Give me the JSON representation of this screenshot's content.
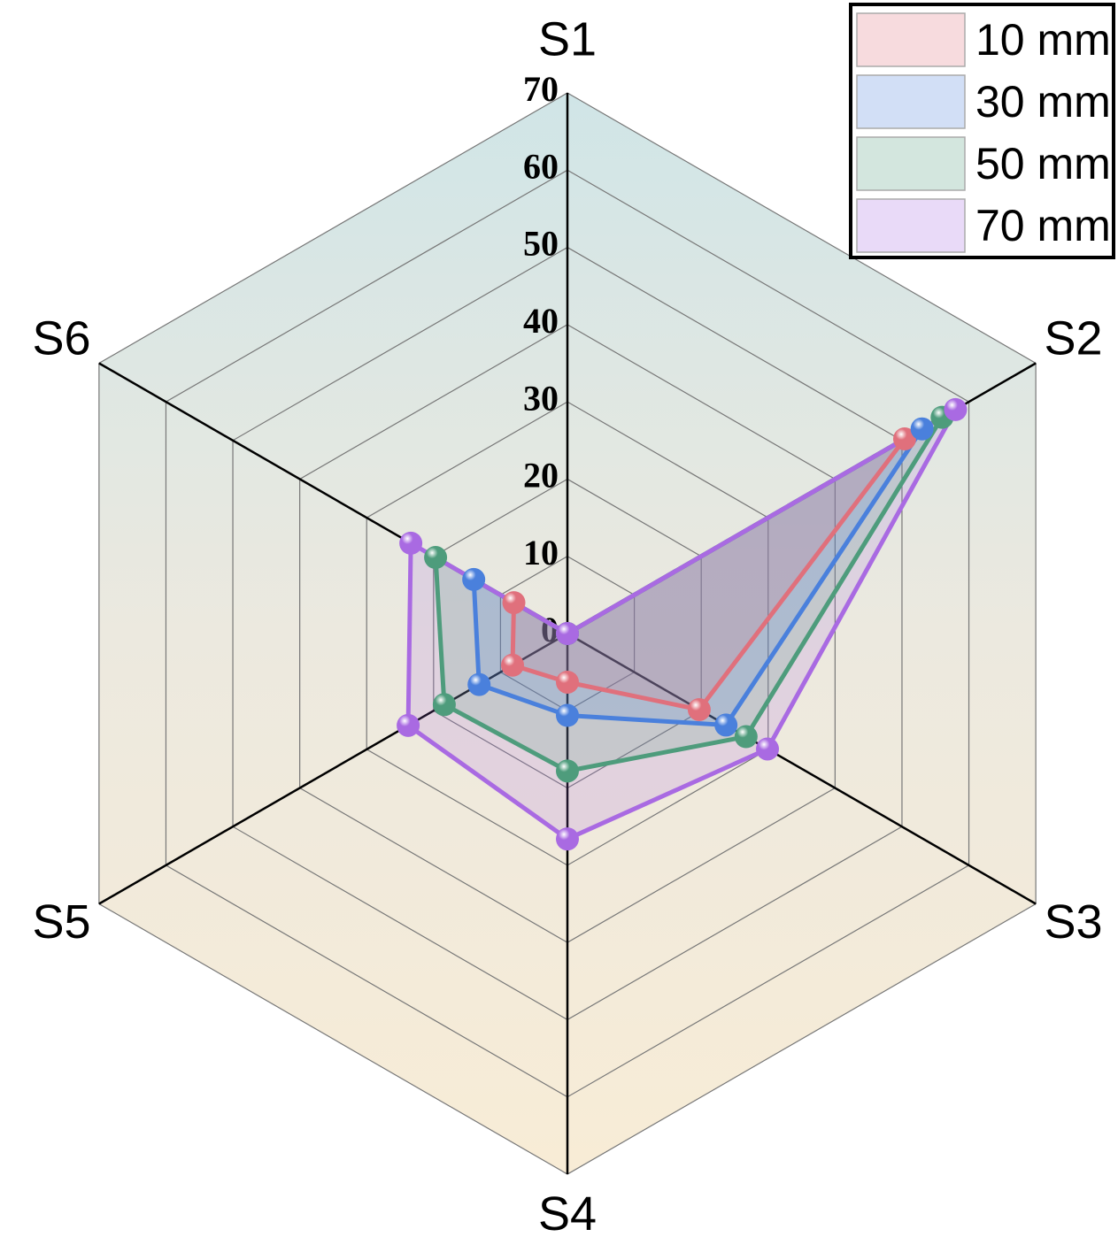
{
  "chart_data": {
    "type": "radar",
    "categories": [
      "S1",
      "S2",
      "S3",
      "S4",
      "S5",
      "S6"
    ],
    "rlim": [
      0,
      70
    ],
    "rticks": [
      0,
      10,
      20,
      30,
      40,
      50,
      60,
      70
    ],
    "grid": true,
    "legend": "upper right",
    "series": [
      {
        "name": "10 mm",
        "color": "#e0707c",
        "values": [
          0,
          50.4,
          19.7,
          6.3,
          8.2,
          8
        ]
      },
      {
        "name": "30 mm",
        "color": "#4a80dc",
        "values": [
          0,
          53,
          23.7,
          10.6,
          13.2,
          14
        ]
      },
      {
        "name": "50 mm",
        "color": "#4e9c7c",
        "values": [
          0,
          56,
          26.7,
          17.8,
          18.4,
          19.7
        ]
      },
      {
        "name": "70 mm",
        "color": "#a96ae2",
        "values": [
          0,
          58,
          29.9,
          26.6,
          23.8,
          23.4
        ]
      }
    ]
  }
}
